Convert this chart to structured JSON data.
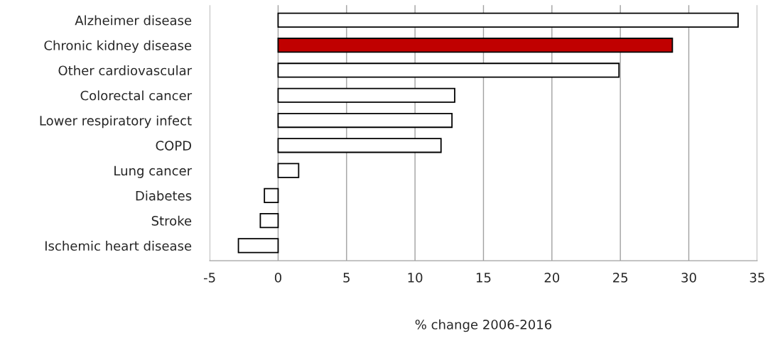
{
  "chart_data": {
    "type": "bar",
    "orientation": "horizontal",
    "categories": [
      "Alzheimer disease",
      "Chronic kidney disease",
      "Other cardiovascular",
      "Colorectal cancer",
      "Lower respiratory infect",
      "COPD",
      "Lung cancer",
      "Diabetes",
      "Stroke",
      "Ischemic heart disease"
    ],
    "values": [
      33.6,
      28.8,
      24.9,
      12.9,
      12.7,
      11.9,
      1.5,
      -1.0,
      -1.3,
      -2.9
    ],
    "colors": [
      "#ffffff",
      "#c00000",
      "#ffffff",
      "#ffffff",
      "#ffffff",
      "#ffffff",
      "#ffffff",
      "#ffffff",
      "#ffffff",
      "#ffffff"
    ],
    "xlabel": "% change 2006-2016",
    "xlim": [
      -5,
      35
    ],
    "xticks": [
      -5,
      0,
      5,
      10,
      15,
      20,
      25,
      30,
      35
    ],
    "grid": "x"
  }
}
